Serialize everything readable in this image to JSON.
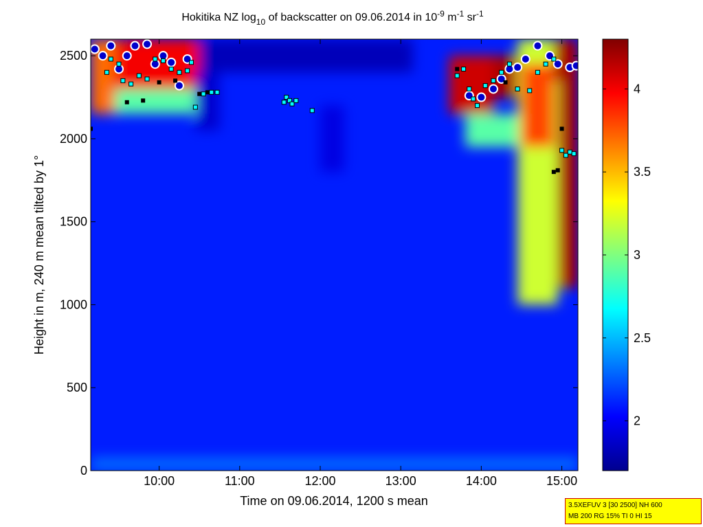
{
  "chart_data": {
    "type": "heatmap",
    "title": {
      "prefix": "Hokitika NZ log",
      "prefix_sub": "10",
      "middle": " of backscatter on 09.06.2014 in 10",
      "exp1": "-9",
      "unit1": " m",
      "exp2": "-1",
      "unit2": " sr",
      "exp3": "-1"
    },
    "xlabel": "Time on 09.06.2014, 1200 s mean",
    "ylabel": "Height in m, 240 m mean tilted by 1°",
    "xlim": [
      9.15,
      15.2
    ],
    "ylim": [
      0,
      2600
    ],
    "xticks": [
      {
        "value": 10,
        "label": "10:00"
      },
      {
        "value": 11,
        "label": "11:00"
      },
      {
        "value": 12,
        "label": "12:00"
      },
      {
        "value": 13,
        "label": "13:00"
      },
      {
        "value": 14,
        "label": "14:00"
      },
      {
        "value": 15,
        "label": "15:00"
      }
    ],
    "yticks": [
      {
        "value": 0,
        "label": "0"
      },
      {
        "value": 500,
        "label": "500"
      },
      {
        "value": 1000,
        "label": "1000"
      },
      {
        "value": 1500,
        "label": "1500"
      },
      {
        "value": 2000,
        "label": "2000"
      },
      {
        "value": 2500,
        "label": "2500"
      }
    ],
    "colorbar": {
      "range": [
        1.7,
        4.3
      ],
      "colormap": "jet",
      "ticks": [
        {
          "value": 2,
          "label": "2"
        },
        {
          "value": 2.5,
          "label": "2.5"
        },
        {
          "value": 3,
          "label": "3"
        },
        {
          "value": 3.5,
          "label": "3.5"
        },
        {
          "value": 4,
          "label": "4"
        }
      ]
    },
    "background_level": 2.1,
    "regions": [
      {
        "x": [
          9.15,
          9.45
        ],
        "y": [
          2150,
          2600
        ],
        "value": 3.7
      },
      {
        "x": [
          9.45,
          10.5
        ],
        "y": [
          2300,
          2600
        ],
        "value": 4.0
      },
      {
        "x": [
          9.45,
          10.5
        ],
        "y": [
          2150,
          2300
        ],
        "value": 2.9
      },
      {
        "x": [
          10.5,
          13.15
        ],
        "y": [
          2400,
          2600
        ],
        "value": 1.85
      },
      {
        "x": [
          10.45,
          10.75
        ],
        "y": [
          2050,
          2400
        ],
        "value": 1.9
      },
      {
        "x": [
          13.6,
          14.15
        ],
        "y": [
          2150,
          2500
        ],
        "value": 4.1
      },
      {
        "x": [
          14.15,
          14.45
        ],
        "y": [
          2250,
          2500
        ],
        "value": 4.2
      },
      {
        "x": [
          13.8,
          14.5
        ],
        "y": [
          1950,
          2150
        ],
        "value": 2.9
      },
      {
        "x": [
          14.45,
          14.95
        ],
        "y": [
          1000,
          2600
        ],
        "value": 3.2
      },
      {
        "x": [
          14.5,
          14.9
        ],
        "y": [
          1950,
          2450
        ],
        "value": 3.8
      },
      {
        "x": [
          14.95,
          15.2
        ],
        "y": [
          1100,
          2350
        ],
        "value": 4.2
      },
      {
        "x": [
          14.9,
          15.2
        ],
        "y": [
          2350,
          2600
        ],
        "value": 4.2
      },
      {
        "x": [
          12.0,
          12.3
        ],
        "y": [
          1800,
          2200
        ],
        "value": 1.95
      },
      {
        "x": [
          9.15,
          15.2
        ],
        "y": [
          0,
          80
        ],
        "value": 2.3
      }
    ],
    "markers": {
      "cyan_squares": [
        [
          9.35,
          2400
        ],
        [
          9.4,
          2480
        ],
        [
          9.5,
          2450
        ],
        [
          9.55,
          2350
        ],
        [
          9.65,
          2330
        ],
        [
          9.75,
          2380
        ],
        [
          9.85,
          2360
        ],
        [
          9.95,
          2480
        ],
        [
          10.05,
          2470
        ],
        [
          10.15,
          2420
        ],
        [
          10.25,
          2400
        ],
        [
          10.35,
          2410
        ],
        [
          10.4,
          2460
        ],
        [
          10.45,
          2190
        ],
        [
          10.55,
          2270
        ],
        [
          10.65,
          2280
        ],
        [
          10.72,
          2280
        ],
        [
          11.55,
          2220
        ],
        [
          11.58,
          2250
        ],
        [
          11.62,
          2230
        ],
        [
          11.65,
          2210
        ],
        [
          11.7,
          2230
        ],
        [
          11.9,
          2170
        ],
        [
          13.7,
          2380
        ],
        [
          13.78,
          2420
        ],
        [
          13.85,
          2300
        ],
        [
          13.9,
          2240
        ],
        [
          13.95,
          2200
        ],
        [
          14.05,
          2320
        ],
        [
          14.15,
          2350
        ],
        [
          14.25,
          2400
        ],
        [
          14.35,
          2450
        ],
        [
          14.45,
          2300
        ],
        [
          14.6,
          2290
        ],
        [
          14.7,
          2400
        ],
        [
          14.8,
          2450
        ],
        [
          14.9,
          2480
        ],
        [
          15.0,
          1930
        ],
        [
          15.05,
          1900
        ],
        [
          15.1,
          1920
        ],
        [
          15.15,
          1910
        ]
      ],
      "black_squares": [
        [
          9.15,
          2060
        ],
        [
          9.6,
          2220
        ],
        [
          9.8,
          2230
        ],
        [
          10.0,
          2340
        ],
        [
          10.2,
          2350
        ],
        [
          10.5,
          2270
        ],
        [
          10.6,
          2280
        ],
        [
          13.7,
          2420
        ],
        [
          14.3,
          2340
        ],
        [
          14.9,
          1800
        ],
        [
          14.95,
          1810
        ],
        [
          15.0,
          2060
        ]
      ],
      "red_circles": [
        [
          9.2,
          2540
        ],
        [
          9.3,
          2500
        ],
        [
          9.4,
          2560
        ],
        [
          9.5,
          2420
        ],
        [
          9.6,
          2500
        ],
        [
          9.7,
          2560
        ],
        [
          9.85,
          2570
        ],
        [
          9.95,
          2450
        ],
        [
          10.05,
          2500
        ],
        [
          10.15,
          2460
        ],
        [
          10.25,
          2320
        ],
        [
          10.35,
          2480
        ],
        [
          13.85,
          2260
        ],
        [
          14.0,
          2250
        ],
        [
          14.15,
          2300
        ],
        [
          14.25,
          2360
        ],
        [
          14.35,
          2420
        ],
        [
          14.45,
          2430
        ],
        [
          14.55,
          2480
        ],
        [
          14.7,
          2560
        ],
        [
          14.85,
          2500
        ],
        [
          14.95,
          2450
        ],
        [
          15.1,
          2430
        ],
        [
          15.18,
          2440
        ]
      ]
    }
  },
  "info_box": {
    "line1": "3.5XEFUV 3 [30 2500] NH 600",
    "line2": "MB 200 RG 15% TI 0 HI 15"
  }
}
